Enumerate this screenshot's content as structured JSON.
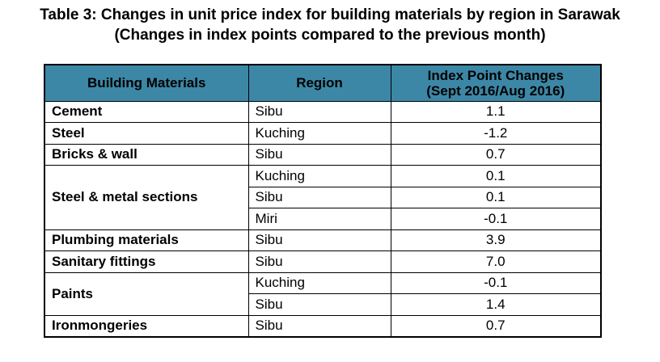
{
  "title": {
    "line1": "Table 3: Changes in unit price index for building materials by region in Sarawak",
    "line2": "(Changes in index points compared to the previous month)"
  },
  "table": {
    "headers": {
      "material": "Building Materials",
      "region": "Region",
      "index_line1": "Index Point Changes",
      "index_line2": "(Sept 2016/Aug 2016)"
    },
    "groups": [
      {
        "material": "Cement",
        "rows": [
          {
            "region": "Sibu",
            "value": "1.1"
          }
        ]
      },
      {
        "material": "Steel",
        "rows": [
          {
            "region": "Kuching",
            "value": "-1.2"
          }
        ]
      },
      {
        "material": "Bricks & wall",
        "rows": [
          {
            "region": "Sibu",
            "value": "0.7"
          }
        ]
      },
      {
        "material": "Steel & metal sections",
        "rows": [
          {
            "region": "Kuching",
            "value": "0.1"
          },
          {
            "region": "Sibu",
            "value": "0.1"
          },
          {
            "region": "Miri",
            "value": "-0.1"
          }
        ]
      },
      {
        "material": "Plumbing materials",
        "rows": [
          {
            "region": "Sibu",
            "value": "3.9"
          }
        ]
      },
      {
        "material": "Sanitary fittings",
        "rows": [
          {
            "region": "Sibu",
            "value": "7.0"
          }
        ]
      },
      {
        "material": "Paints",
        "rows": [
          {
            "region": "Kuching",
            "value": "-0.1"
          },
          {
            "region": "Sibu",
            "value": "1.4"
          }
        ]
      },
      {
        "material": "Ironmongeries",
        "rows": [
          {
            "region": "Sibu",
            "value": "0.7"
          }
        ]
      }
    ]
  }
}
